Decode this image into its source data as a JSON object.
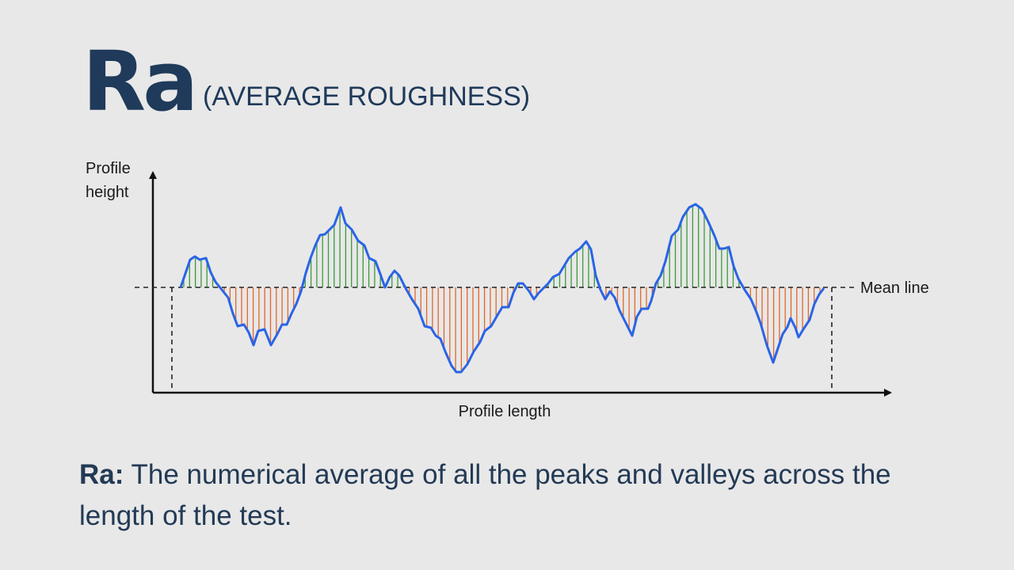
{
  "title": {
    "main": "Ra",
    "sub": "(AVERAGE ROUGHNESS)"
  },
  "diagram": {
    "y_axis_label_line1": "Profile",
    "y_axis_label_line2": "height",
    "x_axis_label": "Profile length",
    "mean_line_label": "Mean line",
    "colors": {
      "profile": "#2a64e6",
      "peak_fill": "#3a9a3a",
      "valley_fill": "#e2662a",
      "axis": "#111111",
      "text": "#1a1a1a"
    }
  },
  "description": {
    "term": "Ra:",
    "text": " The numerical average of all the peaks and valleys across the length of the test."
  }
}
